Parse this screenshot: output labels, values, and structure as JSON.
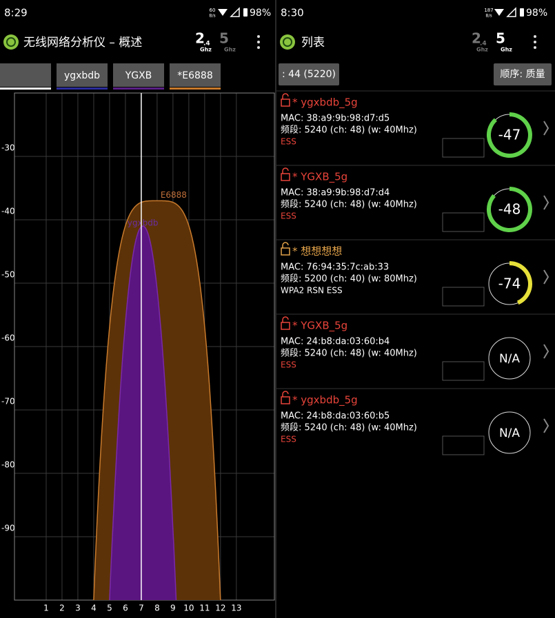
{
  "left": {
    "status": {
      "time": "8:29",
      "speed": "60",
      "speed_unit": "B/s",
      "battery": "98%"
    },
    "title": "无线网络分析仪 – 概述",
    "band24": {
      "main": "2",
      "sub": ".4",
      "unit": "Ghz",
      "color": "#ffffff"
    },
    "band5": {
      "main": "5",
      "unit": "Ghz",
      "color": "#777777"
    },
    "tabs": [
      {
        "label": "ygxbdb",
        "color": "#2c2c9c"
      },
      {
        "label": "YGXB",
        "color": "#5a1f86"
      },
      {
        "label": "*E6888",
        "color": "#c87a2c"
      }
    ],
    "chart": {
      "ylim": [
        -100,
        -20
      ],
      "yticks": [
        -30,
        -40,
        -50,
        -60,
        -70,
        -80,
        -90
      ],
      "xlim": [
        -1,
        15.4
      ],
      "xticks": [
        1,
        2,
        3,
        4,
        5,
        6,
        7,
        8,
        9,
        10,
        11,
        12,
        13
      ],
      "marker_channel": 7,
      "networks": [
        {
          "name": "E6888",
          "span": [
            4,
            12
          ],
          "level": -37,
          "fill": "#5c3208",
          "stroke": "#c87a2c",
          "label_color": "#c0703a"
        },
        {
          "name": "ygxbdb",
          "span": [
            5,
            9.2
          ],
          "level": -41,
          "fill": "#5a1580",
          "stroke": "#7a2aa8",
          "label_color": "#6a2ea0"
        }
      ]
    }
  },
  "right": {
    "status": {
      "time": "8:30",
      "speed": "187",
      "speed_unit": "B/s",
      "battery": "98%"
    },
    "title": "列表",
    "band24": {
      "main": "2",
      "sub": ".4",
      "unit": "Ghz",
      "color": "#777777"
    },
    "band5": {
      "main": "5",
      "unit": "Ghz",
      "color": "#ffffff"
    },
    "filter": ": 44 (5220)",
    "sort": "顺序: 质量",
    "networks": [
      {
        "title": "* ygxbdb_5g",
        "mac": "MAC: 38:a9:9b:98:d7:d5",
        "freq": "频段: 5240 (ch: 48) (w: 40Mhz)",
        "caps": "ESS",
        "color": "#e8443a",
        "caps_color": "#e8443a",
        "signal": -47,
        "gauge_color": "#5fd14a"
      },
      {
        "title": "* YGXB_5g",
        "mac": "MAC: 38:a9:9b:98:d7:d4",
        "freq": "频段: 5240 (ch: 48) (w: 40Mhz)",
        "caps": "ESS",
        "color": "#e8443a",
        "caps_color": "#e8443a",
        "signal": -48,
        "gauge_color": "#5fd14a"
      },
      {
        "title": "* 想想想想",
        "mac": "MAC: 76:94:35:7c:ab:33",
        "freq": "频段: 5200 (ch: 40) (w: 80Mhz)",
        "caps": "WPA2 RSN ESS",
        "color": "#e3a34a",
        "caps_color": "#ffffff",
        "signal": -74,
        "gauge_color": "#e6e03a"
      },
      {
        "title": "* YGXB_5g",
        "mac": "MAC: 24:b8:da:03:60:b4",
        "freq": "频段: 5240 (ch: 48) (w: 40Mhz)",
        "caps": "ESS",
        "color": "#e8443a",
        "caps_color": "#e8443a",
        "signal": "N/A"
      },
      {
        "title": "* ygxbdb_5g",
        "mac": "MAC: 24:b8:da:03:60:b5",
        "freq": "频段: 5240 (ch: 48) (w: 40Mhz)",
        "caps": "ESS",
        "color": "#e8443a",
        "caps_color": "#e8443a",
        "signal": "N/A"
      }
    ]
  }
}
